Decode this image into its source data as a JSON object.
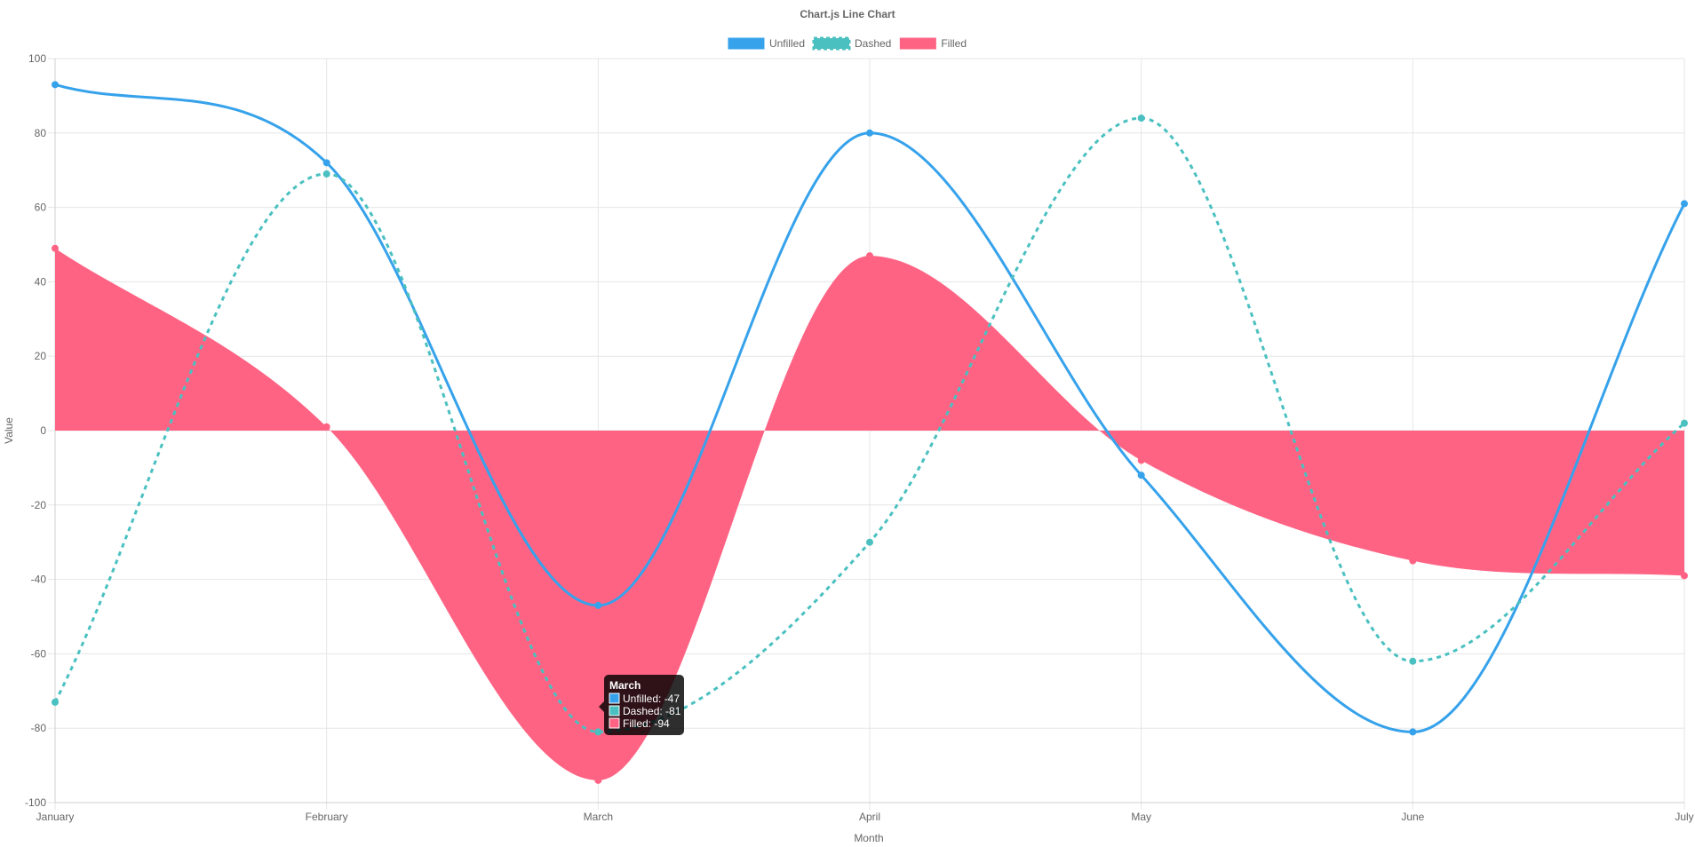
{
  "chart_data": {
    "type": "line",
    "title": "Chart.js Line Chart",
    "xlabel": "Month",
    "ylabel": "Value",
    "categories": [
      "January",
      "February",
      "March",
      "April",
      "May",
      "June",
      "July"
    ],
    "ylim": [
      -100,
      100
    ],
    "yticks": [
      100,
      80,
      60,
      40,
      20,
      0,
      -20,
      -40,
      -60,
      -80,
      -100
    ],
    "grid": true,
    "legend_position": "top",
    "series": [
      {
        "name": "Unfilled",
        "values": [
          93,
          72,
          -47,
          80,
          -12,
          -81,
          61
        ],
        "color": "#36a2eb",
        "style": "solid",
        "fill": false
      },
      {
        "name": "Dashed",
        "values": [
          -73,
          69,
          -81,
          -30,
          84,
          -62,
          2
        ],
        "color": "#4bc0c0",
        "style": "dashed",
        "fill": false
      },
      {
        "name": "Filled",
        "values": [
          49,
          1,
          -94,
          47,
          -8,
          -35,
          -39
        ],
        "color": "#ff6384",
        "style": "solid",
        "fill": true
      }
    ],
    "tooltip": {
      "title": "March",
      "lines": [
        "Unfilled: -47",
        "Dashed: -81",
        "Filled: -94"
      ]
    }
  }
}
